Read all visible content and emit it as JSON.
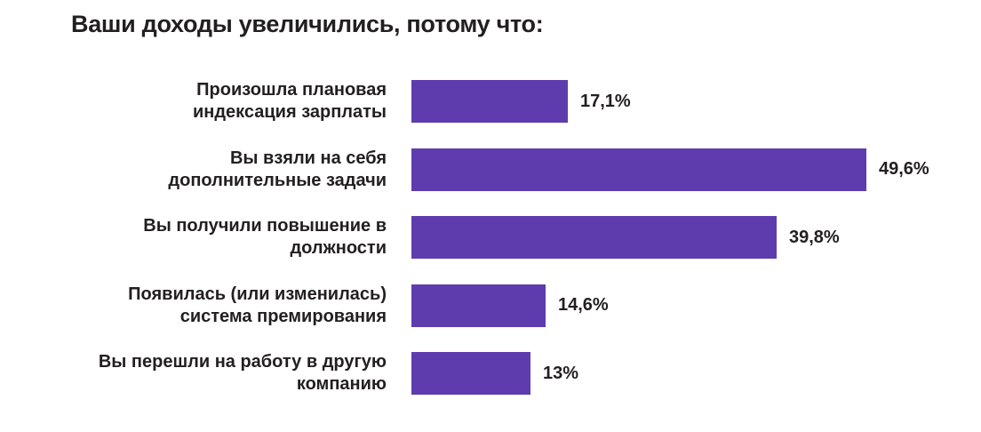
{
  "page": {
    "background": "#ffffff"
  },
  "chart_data": {
    "type": "bar",
    "orientation": "horizontal",
    "title": "Ваши доходы увеличились, потому что:",
    "categories": [
      "Произошла плановая\nиндексация зарплаты",
      "Вы взяли на себя\nдополнительные задачи",
      "Вы получили повышение в\nдолжности",
      "Появилась (или изменилась)\nсистема премирования",
      "Вы перешли на работу в другую\nкомпанию"
    ],
    "values": [
      17.1,
      49.6,
      39.8,
      14.6,
      13
    ],
    "value_labels": [
      "17,1%",
      "49,6%",
      "39,8%",
      "14,6%",
      "13%"
    ],
    "xlabel": "",
    "ylabel": "",
    "xlim": [
      0,
      52
    ],
    "grid": false,
    "legend": false,
    "value_label_position": "right-of-bar",
    "bar_color": "#5E3CAE",
    "text_color": "#231F20"
  }
}
